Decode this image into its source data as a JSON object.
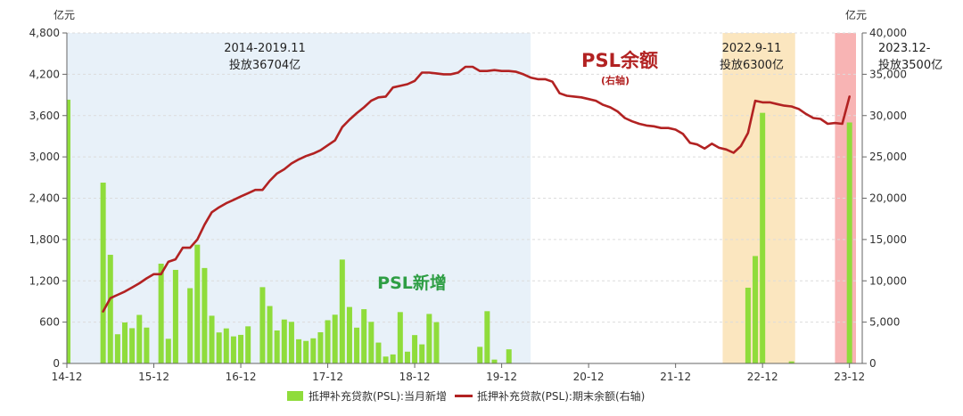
{
  "chart_data": {
    "type": "bar+line",
    "left_unit": "亿元",
    "right_unit": "亿元",
    "left_axis": {
      "min": 0,
      "max": 4800,
      "ticks": [
        "0",
        "600",
        "1,200",
        "1,800",
        "2,400",
        "3,000",
        "3,600",
        "4,200",
        "4,800"
      ]
    },
    "right_axis": {
      "min": 0,
      "max": 40000,
      "ticks": [
        "0",
        "5,000",
        "10,000",
        "15,000",
        "20,000",
        "25,000",
        "30,000",
        "35,000",
        "40,000"
      ]
    },
    "x_ticks": [
      {
        "label": "14-12",
        "t": 0
      },
      {
        "label": "15-12",
        "t": 12
      },
      {
        "label": "16-12",
        "t": 24
      },
      {
        "label": "17-12",
        "t": 36
      },
      {
        "label": "18-12",
        "t": 48
      },
      {
        "label": "19-12",
        "t": 60
      },
      {
        "label": "20-12",
        "t": 72
      },
      {
        "label": "21-12",
        "t": 84
      },
      {
        "label": "22-12",
        "t": 96
      },
      {
        "label": "23-12",
        "t": 108
      }
    ],
    "shaded_periods": [
      {
        "from": 0,
        "to": 64,
        "color": "#e8f1f9",
        "line1": "2014-2019.11",
        "line2": "投放36704亿"
      },
      {
        "from": 90.5,
        "to": 100.5,
        "color": "#fbe6bf",
        "line1": "2022.9-11",
        "line2": "投放6300亿"
      },
      {
        "from": 106,
        "to": 108.9,
        "color": "#f8b4b4",
        "line1": "2023.12-",
        "line2": "投放3500亿"
      }
    ],
    "labels": {
      "line_title": "PSL余额",
      "line_subtitle": "(右轴)",
      "bar_title": "PSL新增"
    },
    "legend": [
      {
        "name": "抵押补充贷款(PSL):当月新增",
        "color": "#8fdc3b",
        "kind": "bar"
      },
      {
        "name": "抵押补充贷款(PSL):期末余额(右轴)",
        "color": "#b22222",
        "kind": "line"
      }
    ],
    "bars": [
      [
        0,
        3831
      ],
      [
        5,
        2626
      ],
      [
        6,
        1578
      ],
      [
        7,
        424
      ],
      [
        8,
        595
      ],
      [
        9,
        512
      ],
      [
        10,
        705
      ],
      [
        11,
        521
      ],
      [
        13,
        1449
      ],
      [
        14,
        358
      ],
      [
        15,
        1359
      ],
      [
        17,
        1093
      ],
      [
        18,
        1725
      ],
      [
        19,
        1386
      ],
      [
        20,
        693
      ],
      [
        21,
        450
      ],
      [
        22,
        509
      ],
      [
        23,
        393
      ],
      [
        24,
        415
      ],
      [
        25,
        539
      ],
      [
        27,
        1108
      ],
      [
        28,
        834
      ],
      [
        29,
        479
      ],
      [
        30,
        638
      ],
      [
        31,
        604
      ],
      [
        32,
        351
      ],
      [
        33,
        327
      ],
      [
        34,
        365
      ],
      [
        35,
        453
      ],
      [
        36,
        628
      ],
      [
        37,
        708
      ],
      [
        38,
        1509
      ],
      [
        39,
        820
      ],
      [
        40,
        520
      ],
      [
        41,
        788
      ],
      [
        42,
        604
      ],
      [
        43,
        303
      ],
      [
        44,
        100
      ],
      [
        45,
        131
      ],
      [
        46,
        746
      ],
      [
        47,
        171
      ],
      [
        48,
        412
      ],
      [
        49,
        277
      ],
      [
        50,
        719
      ],
      [
        51,
        600
      ],
      [
        57,
        241
      ],
      [
        58,
        759
      ],
      [
        59,
        56
      ],
      [
        61,
        205
      ],
      [
        94,
        1100
      ],
      [
        95,
        1560
      ],
      [
        96,
        3640
      ],
      [
        100,
        30
      ],
      [
        108,
        3500
      ]
    ],
    "balance": [
      [
        5,
        6300
      ],
      [
        6,
        7900
      ],
      [
        7,
        8300
      ],
      [
        8,
        8700
      ],
      [
        9,
        9200
      ],
      [
        10,
        9700
      ],
      [
        11,
        10300
      ],
      [
        12,
        10800
      ],
      [
        13,
        10800
      ],
      [
        14,
        12300
      ],
      [
        15,
        12600
      ],
      [
        16,
        14000
      ],
      [
        17,
        14000
      ],
      [
        18,
        15000
      ],
      [
        19,
        16800
      ],
      [
        20,
        18300
      ],
      [
        21,
        18900
      ],
      [
        22,
        19400
      ],
      [
        23,
        19800
      ],
      [
        24,
        20200
      ],
      [
        25,
        20600
      ],
      [
        26,
        21000
      ],
      [
        27,
        21000
      ],
      [
        28,
        22100
      ],
      [
        29,
        23000
      ],
      [
        30,
        23500
      ],
      [
        31,
        24200
      ],
      [
        32,
        24700
      ],
      [
        33,
        25100
      ],
      [
        34,
        25400
      ],
      [
        35,
        25800
      ],
      [
        36,
        26400
      ],
      [
        37,
        27000
      ],
      [
        38,
        28600
      ],
      [
        39,
        29500
      ],
      [
        40,
        30300
      ],
      [
        41,
        31000
      ],
      [
        42,
        31800
      ],
      [
        43,
        32200
      ],
      [
        44,
        32300
      ],
      [
        45,
        33400
      ],
      [
        46,
        33600
      ],
      [
        47,
        33800
      ],
      [
        48,
        34200
      ],
      [
        49,
        35200
      ],
      [
        50,
        35200
      ],
      [
        51,
        35100
      ],
      [
        52,
        35000
      ],
      [
        53,
        35000
      ],
      [
        54,
        35200
      ],
      [
        55,
        35900
      ],
      [
        56,
        35900
      ],
      [
        57,
        35400
      ],
      [
        58,
        35400
      ],
      [
        59,
        35500
      ],
      [
        60,
        35400
      ],
      [
        61,
        35400
      ],
      [
        62,
        35300
      ],
      [
        63,
        35000
      ],
      [
        64,
        34600
      ],
      [
        65,
        34400
      ],
      [
        66,
        34400
      ],
      [
        67,
        34100
      ],
      [
        68,
        32700
      ],
      [
        69,
        32400
      ],
      [
        70,
        32300
      ],
      [
        71,
        32200
      ],
      [
        72,
        32000
      ],
      [
        73,
        31800
      ],
      [
        74,
        31300
      ],
      [
        75,
        31000
      ],
      [
        76,
        30500
      ],
      [
        77,
        29700
      ],
      [
        78,
        29300
      ],
      [
        79,
        29000
      ],
      [
        80,
        28800
      ],
      [
        81,
        28700
      ],
      [
        82,
        28500
      ],
      [
        83,
        28500
      ],
      [
        84,
        28300
      ],
      [
        85,
        27800
      ],
      [
        86,
        26700
      ],
      [
        87,
        26500
      ],
      [
        88,
        26000
      ],
      [
        89,
        26600
      ],
      [
        90,
        26100
      ],
      [
        91,
        25900
      ],
      [
        92,
        25500
      ],
      [
        93,
        26300
      ],
      [
        94,
        27900
      ],
      [
        95,
        31800
      ],
      [
        96,
        31600
      ],
      [
        97,
        31600
      ],
      [
        98,
        31400
      ],
      [
        99,
        31200
      ],
      [
        100,
        31100
      ],
      [
        101,
        30800
      ],
      [
        102,
        30200
      ],
      [
        103,
        29700
      ],
      [
        104,
        29600
      ],
      [
        105,
        29000
      ],
      [
        106,
        29100
      ],
      [
        107,
        29000
      ],
      [
        108,
        32300
      ]
    ]
  }
}
